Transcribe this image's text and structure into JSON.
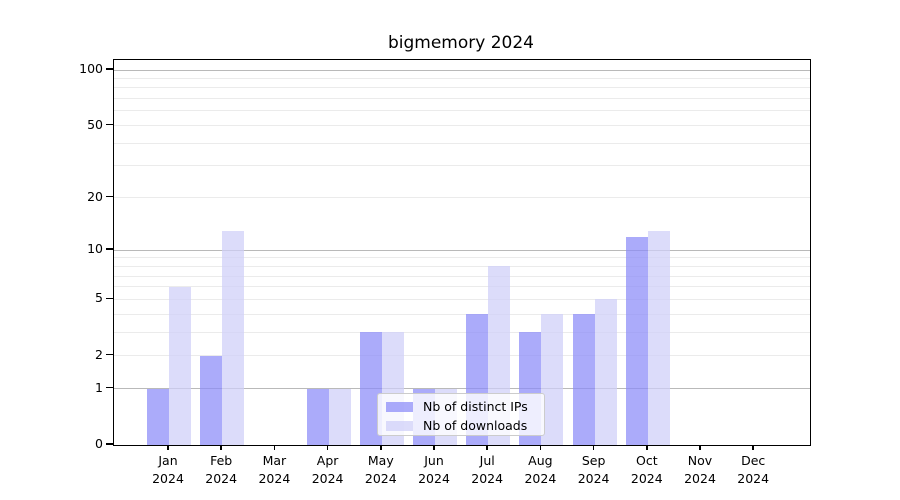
{
  "chart_data": {
    "type": "bar",
    "title": "bigmemory 2024",
    "categories": [
      "Jan",
      "Feb",
      "Mar",
      "Apr",
      "May",
      "Jun",
      "Jul",
      "Aug",
      "Sep",
      "Oct",
      "Nov",
      "Dec"
    ],
    "x_tick_second_line": "2024",
    "series": [
      {
        "name": "Nb of distinct IPs",
        "color": "rgba(138,138,248,0.72)",
        "values": [
          1,
          2,
          0,
          1,
          3,
          1,
          4,
          3,
          4,
          12,
          0,
          0
        ]
      },
      {
        "name": "Nb of downloads",
        "color": "rgba(206,206,248,0.72)",
        "values": [
          6,
          13,
          0,
          1,
          3,
          1,
          8,
          4,
          5,
          13,
          0,
          0
        ]
      }
    ],
    "y_scale": "log1p",
    "y_axis_ticks": [
      0,
      1,
      2,
      5,
      10,
      20,
      50,
      100
    ],
    "y_major_gridlines": [
      1,
      10,
      100
    ],
    "y_minor_gridlines": [
      2,
      3,
      4,
      5,
      6,
      7,
      8,
      9,
      20,
      30,
      40,
      50,
      60,
      70,
      80,
      90
    ],
    "ylim": [
      0,
      113
    ],
    "grid": "on",
    "legend_position": "lower center",
    "colors": {
      "major_grid": "#b9b9b9",
      "minor_grid": "#ebebeb",
      "axis": "#000000",
      "legend_border": "#cccccc"
    }
  }
}
